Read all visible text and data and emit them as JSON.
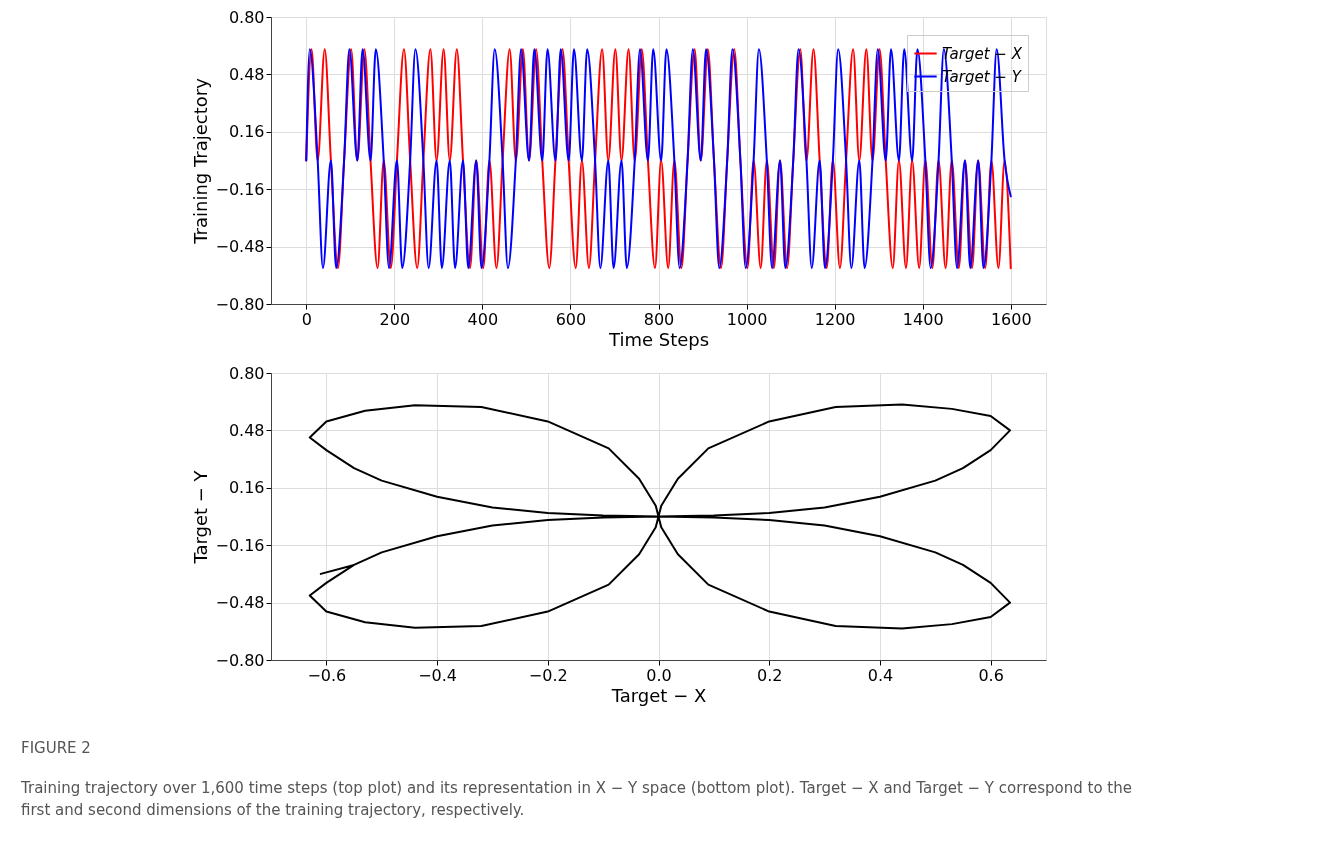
{
  "chart_data": [
    {
      "type": "line",
      "xlabel": "Time Steps",
      "ylabel": "Training Trajectory",
      "xlim": [
        -80,
        1680
      ],
      "xticks": [
        0,
        200,
        400,
        600,
        800,
        1000,
        1200,
        1400,
        1600
      ],
      "ylim": [
        -0.8,
        0.8
      ],
      "yticks": [
        {
          "value": -0.8,
          "label": "−0.80"
        },
        {
          "value": -0.48,
          "label": "−0.48"
        },
        {
          "value": -0.16,
          "label": "−0.16"
        },
        {
          "value": 0.16,
          "label": "0.16"
        },
        {
          "value": 0.48,
          "label": "0.48"
        },
        {
          "value": 0.8,
          "label": "0.80"
        }
      ],
      "grid": true,
      "legend": "top right",
      "line_style": "solid",
      "marker": "none",
      "series": [
        {
          "name": "Target − X",
          "color": "#ff0000",
          "x": [
            0,
            12,
            26,
            42,
            56,
            72,
            86,
            102,
            116,
            132,
            146,
            162,
            176,
            192,
            206,
            222,
            236,
            252,
            266,
            282,
            296,
            312,
            326,
            342,
            356,
            372,
            386,
            402,
            416,
            432,
            446,
            462,
            476,
            492,
            506,
            522,
            536,
            552,
            566,
            582,
            596,
            612,
            626,
            642,
            656,
            672,
            686,
            702,
            716,
            732,
            746,
            762,
            776,
            792,
            806,
            822,
            836,
            852,
            866,
            882,
            896,
            912,
            926,
            942,
            956,
            972,
            986,
            1002,
            1016,
            1032,
            1046,
            1062,
            1076,
            1092,
            1106,
            1122,
            1136,
            1152,
            1166,
            1182,
            1196,
            1212,
            1226,
            1242,
            1256,
            1272,
            1286,
            1302,
            1316,
            1332,
            1346,
            1362,
            1376,
            1392,
            1406,
            1422,
            1436,
            1452,
            1466,
            1482,
            1496,
            1512,
            1526,
            1542,
            1556,
            1572,
            1586,
            1600
          ],
          "values": [
            0,
            0.62,
            0,
            0.62,
            0,
            -0.6,
            0,
            0.62,
            0,
            0.62,
            0,
            -0.6,
            0,
            -0.6,
            0,
            0.62,
            0,
            -0.6,
            0,
            0.62,
            0,
            0.62,
            0,
            0.62,
            0,
            -0.6,
            0,
            -0.6,
            0,
            -0.6,
            0,
            0.62,
            0,
            0.62,
            0,
            0.62,
            0,
            -0.6,
            0,
            0.62,
            0,
            -0.6,
            0,
            -0.6,
            0,
            0.62,
            0,
            0.62,
            0,
            0.62,
            0,
            0.62,
            0,
            -0.6,
            0,
            -0.6,
            0,
            -0.6,
            0,
            0.62,
            0,
            0.62,
            0,
            -0.6,
            0,
            0.62,
            0,
            -0.6,
            0,
            -0.6,
            0,
            -0.6,
            0,
            -0.6,
            0,
            0.62,
            0,
            0.62,
            0,
            -0.6,
            0,
            -0.6,
            0,
            0.62,
            0,
            0.62,
            0,
            0.62,
            0,
            -0.6,
            0,
            -0.6,
            0,
            -0.6,
            0,
            -0.6,
            0,
            -0.6,
            0,
            -0.6,
            0,
            -0.6,
            0,
            -0.6,
            0,
            -0.6,
            0,
            -0.6
          ]
        },
        {
          "name": "Target − Y",
          "color": "#0000ff",
          "x": [
            0,
            8,
            26,
            38,
            56,
            68,
            86,
            98,
            116,
            128,
            146,
            158,
            176,
            188,
            206,
            218,
            236,
            248,
            266,
            278,
            296,
            308,
            326,
            338,
            356,
            368,
            386,
            398,
            416,
            428,
            446,
            458,
            476,
            488,
            506,
            518,
            536,
            548,
            566,
            578,
            596,
            608,
            626,
            638,
            656,
            668,
            686,
            698,
            716,
            728,
            746,
            758,
            776,
            788,
            806,
            818,
            836,
            848,
            866,
            878,
            896,
            908,
            926,
            938,
            956,
            968,
            986,
            998,
            1016,
            1028,
            1046,
            1058,
            1076,
            1088,
            1106,
            1118,
            1136,
            1148,
            1166,
            1178,
            1196,
            1208,
            1226,
            1238,
            1256,
            1268,
            1286,
            1298,
            1316,
            1328,
            1346,
            1358,
            1376,
            1388,
            1406,
            1418,
            1436,
            1448,
            1466,
            1478,
            1496,
            1508,
            1526,
            1538,
            1556,
            1568,
            1586,
            1600
          ],
          "values": [
            0,
            0.62,
            0,
            -0.6,
            0,
            -0.6,
            0,
            0.62,
            0,
            0.62,
            0,
            0.62,
            0,
            -0.6,
            0,
            -0.6,
            0,
            0.62,
            0,
            -0.6,
            0,
            -0.6,
            0,
            -0.6,
            0,
            -0.6,
            0,
            -0.6,
            0,
            0.62,
            0,
            -0.6,
            0,
            0.62,
            0,
            0.62,
            0,
            0.62,
            0,
            0.62,
            0,
            0.62,
            0,
            0.62,
            0,
            -0.6,
            0,
            -0.6,
            0,
            -0.6,
            0,
            0.62,
            0,
            0.62,
            0,
            0.62,
            0,
            -0.6,
            0,
            0.62,
            0,
            0.62,
            0,
            -0.6,
            0,
            0.62,
            0,
            -0.6,
            0,
            0.62,
            0,
            -0.6,
            0,
            -0.6,
            0,
            0.62,
            0,
            -0.6,
            0,
            -0.6,
            0,
            0.62,
            0,
            -0.6,
            0,
            -0.6,
            0,
            0.62,
            0,
            0.62,
            0,
            0.62,
            0,
            0.62,
            0,
            -0.6,
            0,
            0.62,
            0,
            -0.6,
            0,
            -0.6,
            0,
            -0.6,
            0,
            0.62,
            0,
            -0.2
          ]
        }
      ]
    },
    {
      "type": "line",
      "xlabel": "Target − X",
      "ylabel": "Target − Y",
      "xlim": [
        -0.7,
        0.7
      ],
      "xticks": [
        {
          "value": -0.6,
          "label": "−0.6"
        },
        {
          "value": -0.4,
          "label": "−0.4"
        },
        {
          "value": -0.2,
          "label": "−0.2"
        },
        {
          "value": 0,
          "label": "0.0"
        },
        0.2,
        0.4,
        0.6
      ],
      "ylim": [
        -0.8,
        0.8
      ],
      "yticks": [
        {
          "value": -0.8,
          "label": "−0.80"
        },
        {
          "value": -0.48,
          "label": "−0.48"
        },
        {
          "value": -0.16,
          "label": "−0.16"
        },
        {
          "value": 0.16,
          "label": "0.16"
        },
        {
          "value": 0.48,
          "label": "0.48"
        },
        {
          "value": 0.8,
          "label": "0.80"
        }
      ],
      "grid": true,
      "line_style": "solid",
      "marker": "none",
      "series": [
        {
          "color": "#000000",
          "x": [
            -0.61,
            -0.55,
            -0.5,
            -0.4,
            -0.3,
            -0.2,
            -0.1,
            0,
            0.1,
            0.2,
            0.3,
            0.4,
            0.5,
            0.55,
            0.6,
            0.635,
            0.6,
            0.53,
            0.44,
            0.32,
            0.2,
            0.09,
            0.035,
            0.005,
            0,
            0.005,
            0.035,
            0.09,
            0.2,
            0.32,
            0.44,
            0.53,
            0.6,
            0.635,
            0.6,
            0.55,
            0.5,
            0.4,
            0.3,
            0.2,
            0.1,
            0,
            -0.1,
            -0.2,
            -0.3,
            -0.4,
            -0.5,
            -0.55,
            -0.6,
            -0.63,
            -0.6,
            -0.53,
            -0.44,
            -0.32,
            -0.2,
            -0.09,
            -0.035,
            -0.005,
            0,
            -0.005,
            -0.035,
            -0.09,
            -0.2,
            -0.32,
            -0.44,
            -0.53,
            -0.6,
            -0.63,
            -0.6,
            -0.55
          ],
          "values": [
            -0.32,
            -0.27,
            -0.2,
            -0.11,
            -0.05,
            -0.02,
            -0.005,
            0,
            0.005,
            0.02,
            0.05,
            0.11,
            0.2,
            0.27,
            0.37,
            0.48,
            0.56,
            0.6,
            0.625,
            0.61,
            0.53,
            0.38,
            0.21,
            0.06,
            0,
            -0.06,
            -0.21,
            -0.38,
            -0.53,
            -0.61,
            -0.625,
            -0.6,
            -0.56,
            -0.48,
            -0.37,
            -0.27,
            -0.2,
            -0.11,
            -0.05,
            -0.02,
            -0.005,
            0,
            0.005,
            0.02,
            0.05,
            0.11,
            0.2,
            0.27,
            0.37,
            0.44,
            0.53,
            0.59,
            0.62,
            0.61,
            0.53,
            0.38,
            0.21,
            0.06,
            0,
            -0.06,
            -0.21,
            -0.38,
            -0.53,
            -0.61,
            -0.62,
            -0.59,
            -0.53,
            -0.44,
            -0.37,
            -0.27
          ]
        }
      ],
      "annotations": [
        "FIGURE 2",
        "Training trajectory over 1,600 time steps (top plot) and its representation in X − Y space (bottom plot). Target − X and Target − Y correspond to the first and second dimensions of the training trajectory, respectively."
      ]
    }
  ]
}
